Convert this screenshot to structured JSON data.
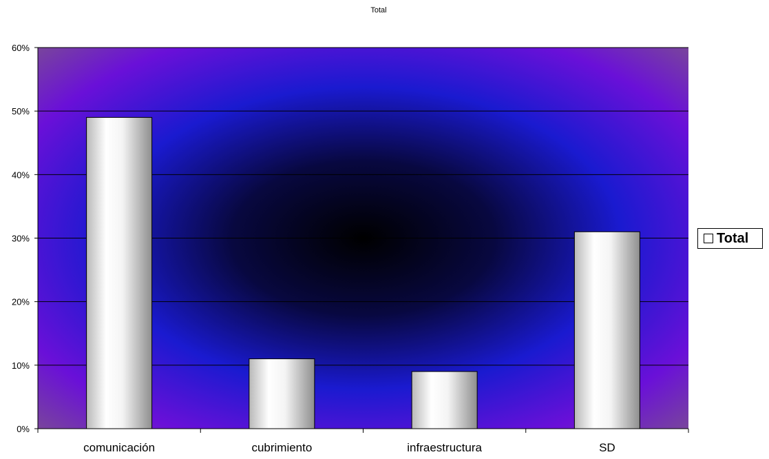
{
  "chart_data": {
    "type": "bar",
    "title": "Total",
    "categories": [
      "comunicación",
      "cubrimiento",
      "infraestructura",
      "SD"
    ],
    "series": [
      {
        "name": "Total",
        "values": [
          0.49,
          0.11,
          0.09,
          0.31
        ]
      }
    ],
    "ylim": [
      0,
      0.6
    ],
    "yticks": [
      0,
      0.1,
      0.2,
      0.3,
      0.4,
      0.5,
      0.6
    ],
    "ytick_labels": [
      "0%",
      "10%",
      "20%",
      "30%",
      "40%",
      "50%",
      "60%"
    ],
    "xlabel": "",
    "ylabel": "",
    "grid": true,
    "legend_position": "right",
    "colors": {
      "bar_fill_light": "#ffffff",
      "bar_fill_dark": "#9c9c9c",
      "plot_center": "#000000",
      "plot_mid": "#1a1ad0",
      "plot_edge": "#7a0fd8",
      "plot_corner": "#7a4a96"
    }
  }
}
